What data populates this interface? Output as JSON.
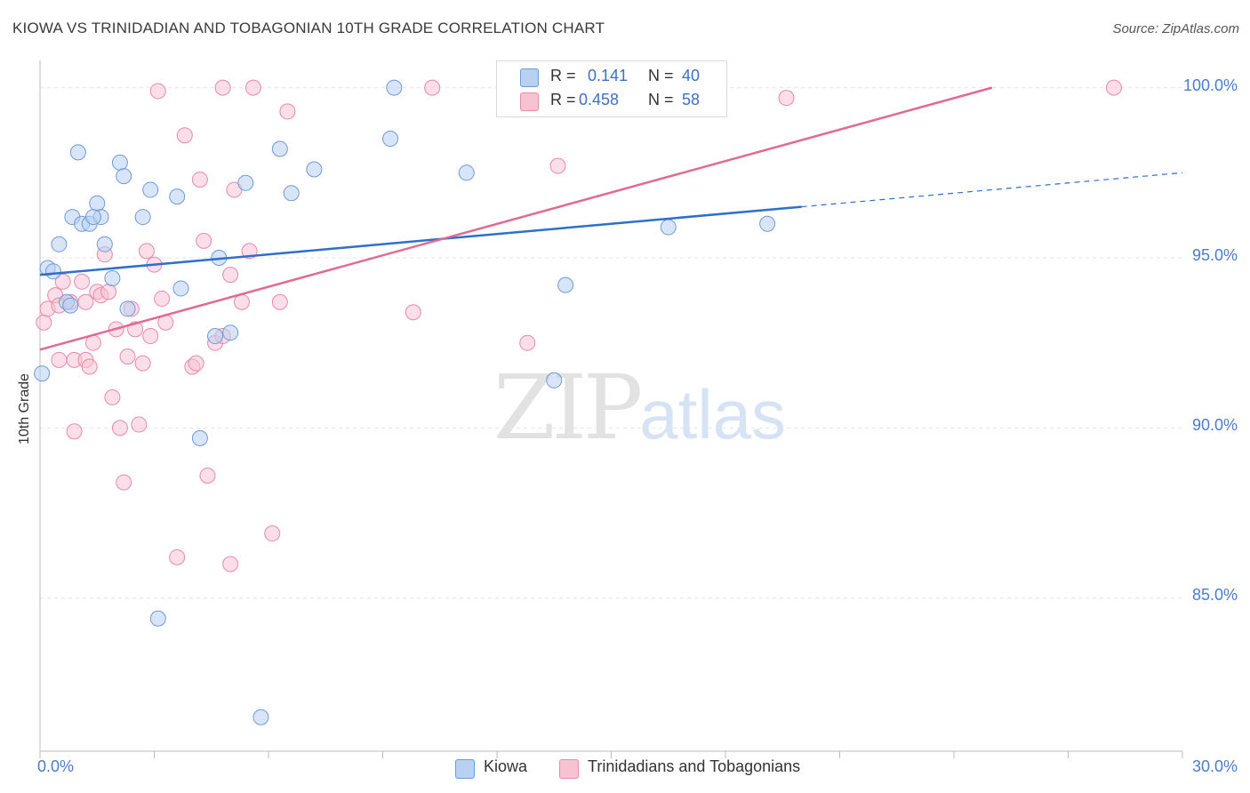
{
  "header": {
    "title": "KIOWA VS TRINIDADIAN AND TOBAGONIAN 10TH GRADE CORRELATION CHART",
    "source": "Source: ZipAtlas.com"
  },
  "watermark": {
    "zip": "ZIP",
    "atlas": "atlas"
  },
  "legend": {
    "rows": [
      {
        "r_label": "R =",
        "r_value": "0.141",
        "n_label": "N =",
        "n_value": "40"
      },
      {
        "r_label": "R =",
        "r_value": "0.458",
        "n_label": "N =",
        "n_value": "58"
      }
    ]
  },
  "colors": {
    "kiowa_fill": "#b8d0f2",
    "kiowa_stroke": "#6f9ad8",
    "kiowa_line": "#2d6fcc",
    "trin_fill": "#f7c3d3",
    "trin_stroke": "#e88aa8",
    "trin_line": "#e06a94",
    "grid": "#e4e4e4",
    "tick_text": "#4a7cc9"
  },
  "chart_data": {
    "type": "scatter",
    "title": "KIOWA VS TRINIDADIAN AND TOBAGONIAN 10TH GRADE CORRELATION CHART",
    "xlabel": "",
    "ylabel": "10th Grade",
    "xlim": [
      0,
      30
    ],
    "ylim": [
      80.5,
      100.8
    ],
    "x_tick_labels": [
      "0.0%",
      "30.0%"
    ],
    "y_ticks": [
      85,
      90,
      95,
      100
    ],
    "y_tick_labels": [
      "85.0%",
      "90.0%",
      "95.0%",
      "100.0%"
    ],
    "grid": "horizontal dashed",
    "legend_position": "bottom-center",
    "series": [
      {
        "name": "Kiowa",
        "r": 0.141,
        "n": 40,
        "points": [
          [
            0.2,
            94.7
          ],
          [
            0.35,
            94.6
          ],
          [
            0.5,
            95.4
          ],
          [
            0.7,
            93.7
          ],
          [
            0.8,
            93.6
          ],
          [
            0.85,
            96.2
          ],
          [
            1.0,
            98.1
          ],
          [
            1.1,
            96.0
          ],
          [
            1.3,
            96.0
          ],
          [
            1.5,
            96.6
          ],
          [
            1.6,
            96.2
          ],
          [
            1.7,
            95.4
          ],
          [
            1.9,
            94.4
          ],
          [
            2.1,
            97.8
          ],
          [
            2.2,
            97.4
          ],
          [
            2.3,
            93.5
          ],
          [
            2.7,
            96.2
          ],
          [
            2.9,
            97.0
          ],
          [
            3.1,
            84.4
          ],
          [
            3.6,
            96.8
          ],
          [
            3.7,
            94.1
          ],
          [
            4.2,
            89.7
          ],
          [
            4.6,
            92.7
          ],
          [
            4.7,
            95.0
          ],
          [
            5.0,
            92.8
          ],
          [
            5.4,
            97.2
          ],
          [
            5.8,
            81.5
          ],
          [
            6.3,
            98.2
          ],
          [
            6.6,
            96.9
          ],
          [
            7.2,
            97.6
          ],
          [
            9.2,
            98.5
          ],
          [
            9.3,
            100.0
          ],
          [
            11.2,
            97.5
          ],
          [
            13.5,
            91.4
          ],
          [
            13.8,
            94.2
          ],
          [
            16.1,
            100.0
          ],
          [
            16.5,
            95.9
          ],
          [
            19.1,
            96.0
          ],
          [
            0.05,
            91.6
          ],
          [
            1.4,
            96.2
          ]
        ],
        "trend": {
          "x": [
            0,
            20
          ],
          "y": [
            94.5,
            96.5
          ],
          "dashed_extension": {
            "x": [
              20,
              30
            ],
            "y": [
              96.5,
              97.5
            ]
          }
        }
      },
      {
        "name": "Trinidadians and Tobagonians",
        "r": 0.458,
        "n": 58,
        "points": [
          [
            0.1,
            93.1
          ],
          [
            0.2,
            93.5
          ],
          [
            0.4,
            93.9
          ],
          [
            0.5,
            93.6
          ],
          [
            0.5,
            92.0
          ],
          [
            0.6,
            94.3
          ],
          [
            0.8,
            93.7
          ],
          [
            0.9,
            92.0
          ],
          [
            0.9,
            89.9
          ],
          [
            1.1,
            94.3
          ],
          [
            1.2,
            93.7
          ],
          [
            1.2,
            92.0
          ],
          [
            1.3,
            91.8
          ],
          [
            1.4,
            92.5
          ],
          [
            1.5,
            94.0
          ],
          [
            1.6,
            93.9
          ],
          [
            1.7,
            95.1
          ],
          [
            1.8,
            94.0
          ],
          [
            1.9,
            90.9
          ],
          [
            2.0,
            92.9
          ],
          [
            2.1,
            90.0
          ],
          [
            2.2,
            88.4
          ],
          [
            2.3,
            92.1
          ],
          [
            2.4,
            93.5
          ],
          [
            2.5,
            92.9
          ],
          [
            2.6,
            90.1
          ],
          [
            2.7,
            91.9
          ],
          [
            2.8,
            95.2
          ],
          [
            2.9,
            92.7
          ],
          [
            3.0,
            94.8
          ],
          [
            3.1,
            99.9
          ],
          [
            3.2,
            93.8
          ],
          [
            3.3,
            93.1
          ],
          [
            3.6,
            86.2
          ],
          [
            3.8,
            98.6
          ],
          [
            4.0,
            91.8
          ],
          [
            4.1,
            91.9
          ],
          [
            4.2,
            97.3
          ],
          [
            4.3,
            95.5
          ],
          [
            4.4,
            88.6
          ],
          [
            4.6,
            92.5
          ],
          [
            4.8,
            92.7
          ],
          [
            5.0,
            94.5
          ],
          [
            5.0,
            86.0
          ],
          [
            5.1,
            97.0
          ],
          [
            5.3,
            93.7
          ],
          [
            5.5,
            95.2
          ],
          [
            5.6,
            100.0
          ],
          [
            6.1,
            86.9
          ],
          [
            6.3,
            93.7
          ],
          [
            6.5,
            99.3
          ],
          [
            4.8,
            100.0
          ],
          [
            9.8,
            93.4
          ],
          [
            10.3,
            100.0
          ],
          [
            12.8,
            92.5
          ],
          [
            13.6,
            97.7
          ],
          [
            19.6,
            99.7
          ],
          [
            28.2,
            100.0
          ]
        ],
        "trend": {
          "x": [
            0,
            25
          ],
          "y": [
            92.3,
            100.0
          ]
        }
      }
    ]
  }
}
